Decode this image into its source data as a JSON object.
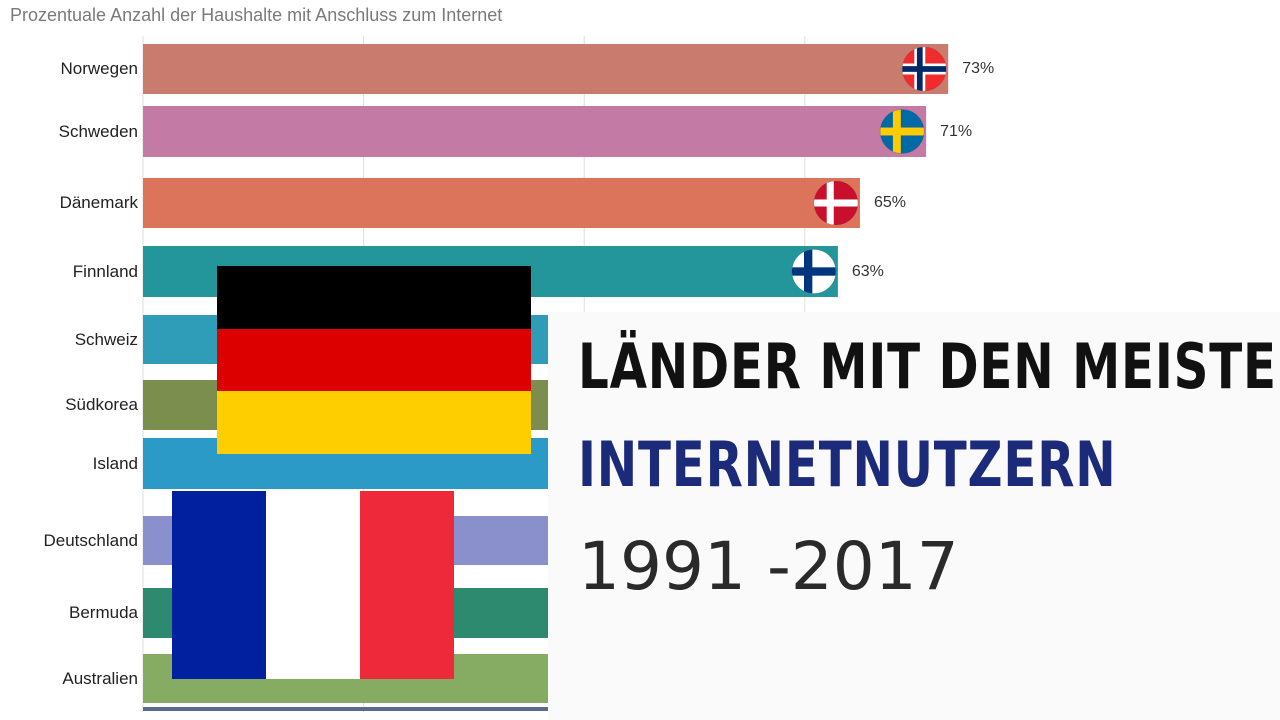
{
  "chart_data": {
    "type": "bar",
    "orientation": "horizontal",
    "title": "Prozentuale Anzahl der Haushalte mit Anschluss zum Internet",
    "categories": [
      "Norwegen",
      "Schweden",
      "Dänemark",
      "Finnland",
      "Schweiz",
      "Südkorea",
      "Island",
      "Deutschland",
      "Bermuda",
      "Australien"
    ],
    "values": [
      73,
      71,
      65,
      63,
      null,
      null,
      null,
      null,
      null,
      null
    ],
    "value_labels": [
      "73%",
      "71%",
      "65%",
      "63%",
      "",
      "",
      "",
      "",
      "",
      ""
    ],
    "colors": [
      "#c97b6d",
      "#c37aa4",
      "#dc745c",
      "#22969a",
      "#2f9db8",
      "#7b8e4e",
      "#2c9ac6",
      "#8a90cc",
      "#2e8a6e",
      "#86ab63"
    ],
    "xlim": [
      0,
      100
    ],
    "grid": true,
    "bar_flags": [
      "norway",
      "sweden",
      "denmark",
      "finland",
      "",
      "",
      "",
      "",
      "",
      ""
    ]
  },
  "overlay": {
    "headline_line1": "LÄNDER MIT DEN MEISTEN",
    "headline_line2": "INTERNETNUTZERN",
    "headline_line3": "1991 -2017",
    "flags": [
      "germany-flag",
      "france-flag"
    ]
  }
}
